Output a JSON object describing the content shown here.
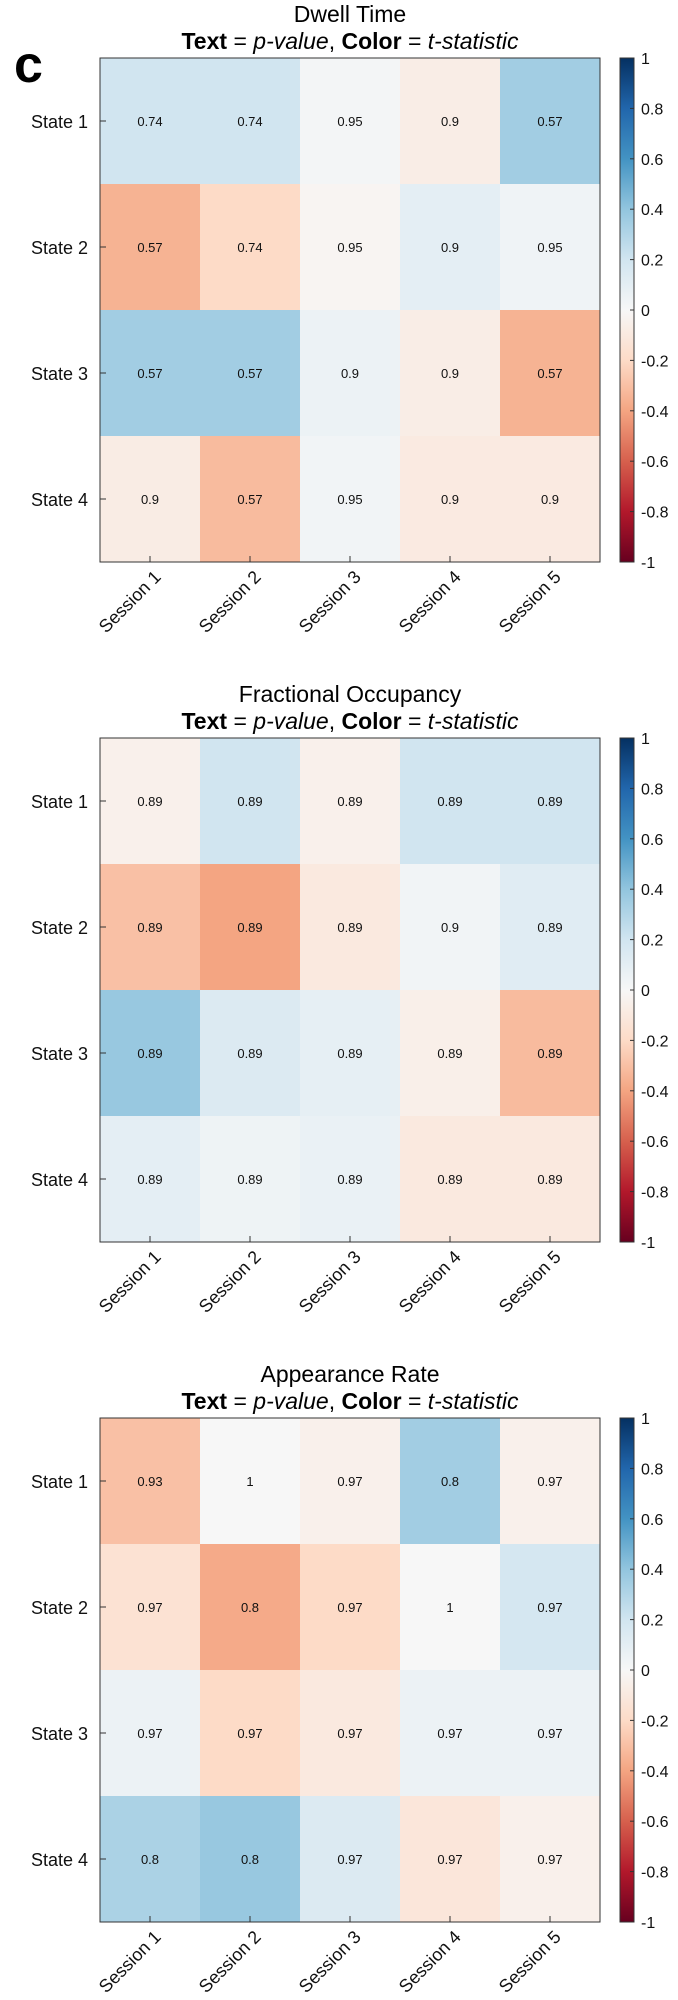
{
  "panel_label": "c",
  "colors": {
    "neg": "#67001f",
    "pos": "#053061",
    "mid": "#f7f7f7"
  },
  "chart_data": [
    {
      "type": "heatmap",
      "title": "Dwell Time",
      "subtitle": {
        "text_bold": "Text",
        "text_italic": "p-value",
        "sep": ", ",
        "color_bold": "Color",
        "color_italic": "t-statistic",
        "eq": " = "
      },
      "rows": [
        "State 1",
        "State 2",
        "State 3",
        "State 4"
      ],
      "columns": [
        "Session 1",
        "Session 2",
        "Session 3",
        "Session 4",
        "Session 5"
      ],
      "pvalues": [
        [
          "0.74",
          "0.74",
          "0.95",
          "0.9",
          "0.57"
        ],
        [
          "0.57",
          "0.74",
          "0.95",
          "0.9",
          "0.95"
        ],
        [
          "0.57",
          "0.57",
          "0.9",
          "0.9",
          "0.57"
        ],
        [
          "0.9",
          "0.57",
          "0.95",
          "0.9",
          "0.9"
        ]
      ],
      "tstats": [
        [
          0.2,
          0.2,
          0.02,
          -0.07,
          0.35
        ],
        [
          -0.35,
          -0.2,
          -0.02,
          0.1,
          0.04
        ],
        [
          0.35,
          0.35,
          0.06,
          -0.07,
          -0.35
        ],
        [
          -0.08,
          -0.32,
          0.03,
          -0.09,
          -0.09
        ]
      ],
      "colorbar": {
        "min": -1,
        "max": 1,
        "ticks": [
          "1",
          "0.8",
          "0.6",
          "0.4",
          "0.2",
          "0",
          "-0.2",
          "-0.4",
          "-0.6",
          "-0.8",
          "-1"
        ]
      }
    },
    {
      "type": "heatmap",
      "title": "Fractional Occupancy",
      "subtitle": {
        "text_bold": "Text",
        "text_italic": "p-value",
        "sep": ", ",
        "color_bold": "Color",
        "color_italic": "t-statistic",
        "eq": " = "
      },
      "rows": [
        "State 1",
        "State 2",
        "State 3",
        "State 4"
      ],
      "columns": [
        "Session 1",
        "Session 2",
        "Session 3",
        "Session 4",
        "Session 5"
      ],
      "pvalues": [
        [
          "0.89",
          "0.89",
          "0.89",
          "0.89",
          "0.89"
        ],
        [
          "0.89",
          "0.89",
          "0.89",
          "0.9",
          "0.89"
        ],
        [
          "0.89",
          "0.89",
          "0.89",
          "0.89",
          "0.89"
        ],
        [
          "0.89",
          "0.89",
          "0.89",
          "0.89",
          "0.89"
        ]
      ],
      "tstats": [
        [
          -0.05,
          0.2,
          -0.05,
          0.2,
          0.2
        ],
        [
          -0.3,
          -0.4,
          -0.1,
          0.03,
          0.12
        ],
        [
          0.38,
          0.14,
          0.09,
          -0.06,
          -0.32
        ],
        [
          0.1,
          0.05,
          0.07,
          -0.1,
          -0.1
        ]
      ],
      "colorbar": {
        "min": -1,
        "max": 1,
        "ticks": [
          "1",
          "0.8",
          "0.6",
          "0.4",
          "0.2",
          "0",
          "-0.2",
          "-0.4",
          "-0.6",
          "-0.8",
          "-1"
        ]
      }
    },
    {
      "type": "heatmap",
      "title": "Appearance Rate",
      "subtitle": {
        "text_bold": "Text",
        "text_italic": "p-value",
        "sep": ", ",
        "color_bold": "Color",
        "color_italic": "t-statistic",
        "eq": " = "
      },
      "rows": [
        "State 1",
        "State 2",
        "State 3",
        "State 4"
      ],
      "columns": [
        "Session 1",
        "Session 2",
        "Session 3",
        "Session 4",
        "Session 5"
      ],
      "pvalues": [
        [
          "0.93",
          "1",
          "0.97",
          "0.8",
          "0.97"
        ],
        [
          "0.97",
          "0.8",
          "0.97",
          "1",
          "0.97"
        ],
        [
          "0.97",
          "0.97",
          "0.97",
          "0.97",
          "0.97"
        ],
        [
          "0.8",
          "0.8",
          "0.97",
          "0.97",
          "0.97"
        ]
      ],
      "tstats": [
        [
          -0.3,
          0.0,
          -0.05,
          0.35,
          -0.05
        ],
        [
          -0.15,
          -0.38,
          -0.2,
          0.0,
          0.18
        ],
        [
          0.06,
          -0.2,
          -0.1,
          0.06,
          0.06
        ],
        [
          0.32,
          0.38,
          0.14,
          -0.12,
          -0.05
        ]
      ],
      "colorbar": {
        "min": -1,
        "max": 1,
        "ticks": [
          "1",
          "0.8",
          "0.6",
          "0.4",
          "0.2",
          "0",
          "-0.2",
          "-0.4",
          "-0.6",
          "-0.8",
          "-1"
        ]
      }
    }
  ]
}
